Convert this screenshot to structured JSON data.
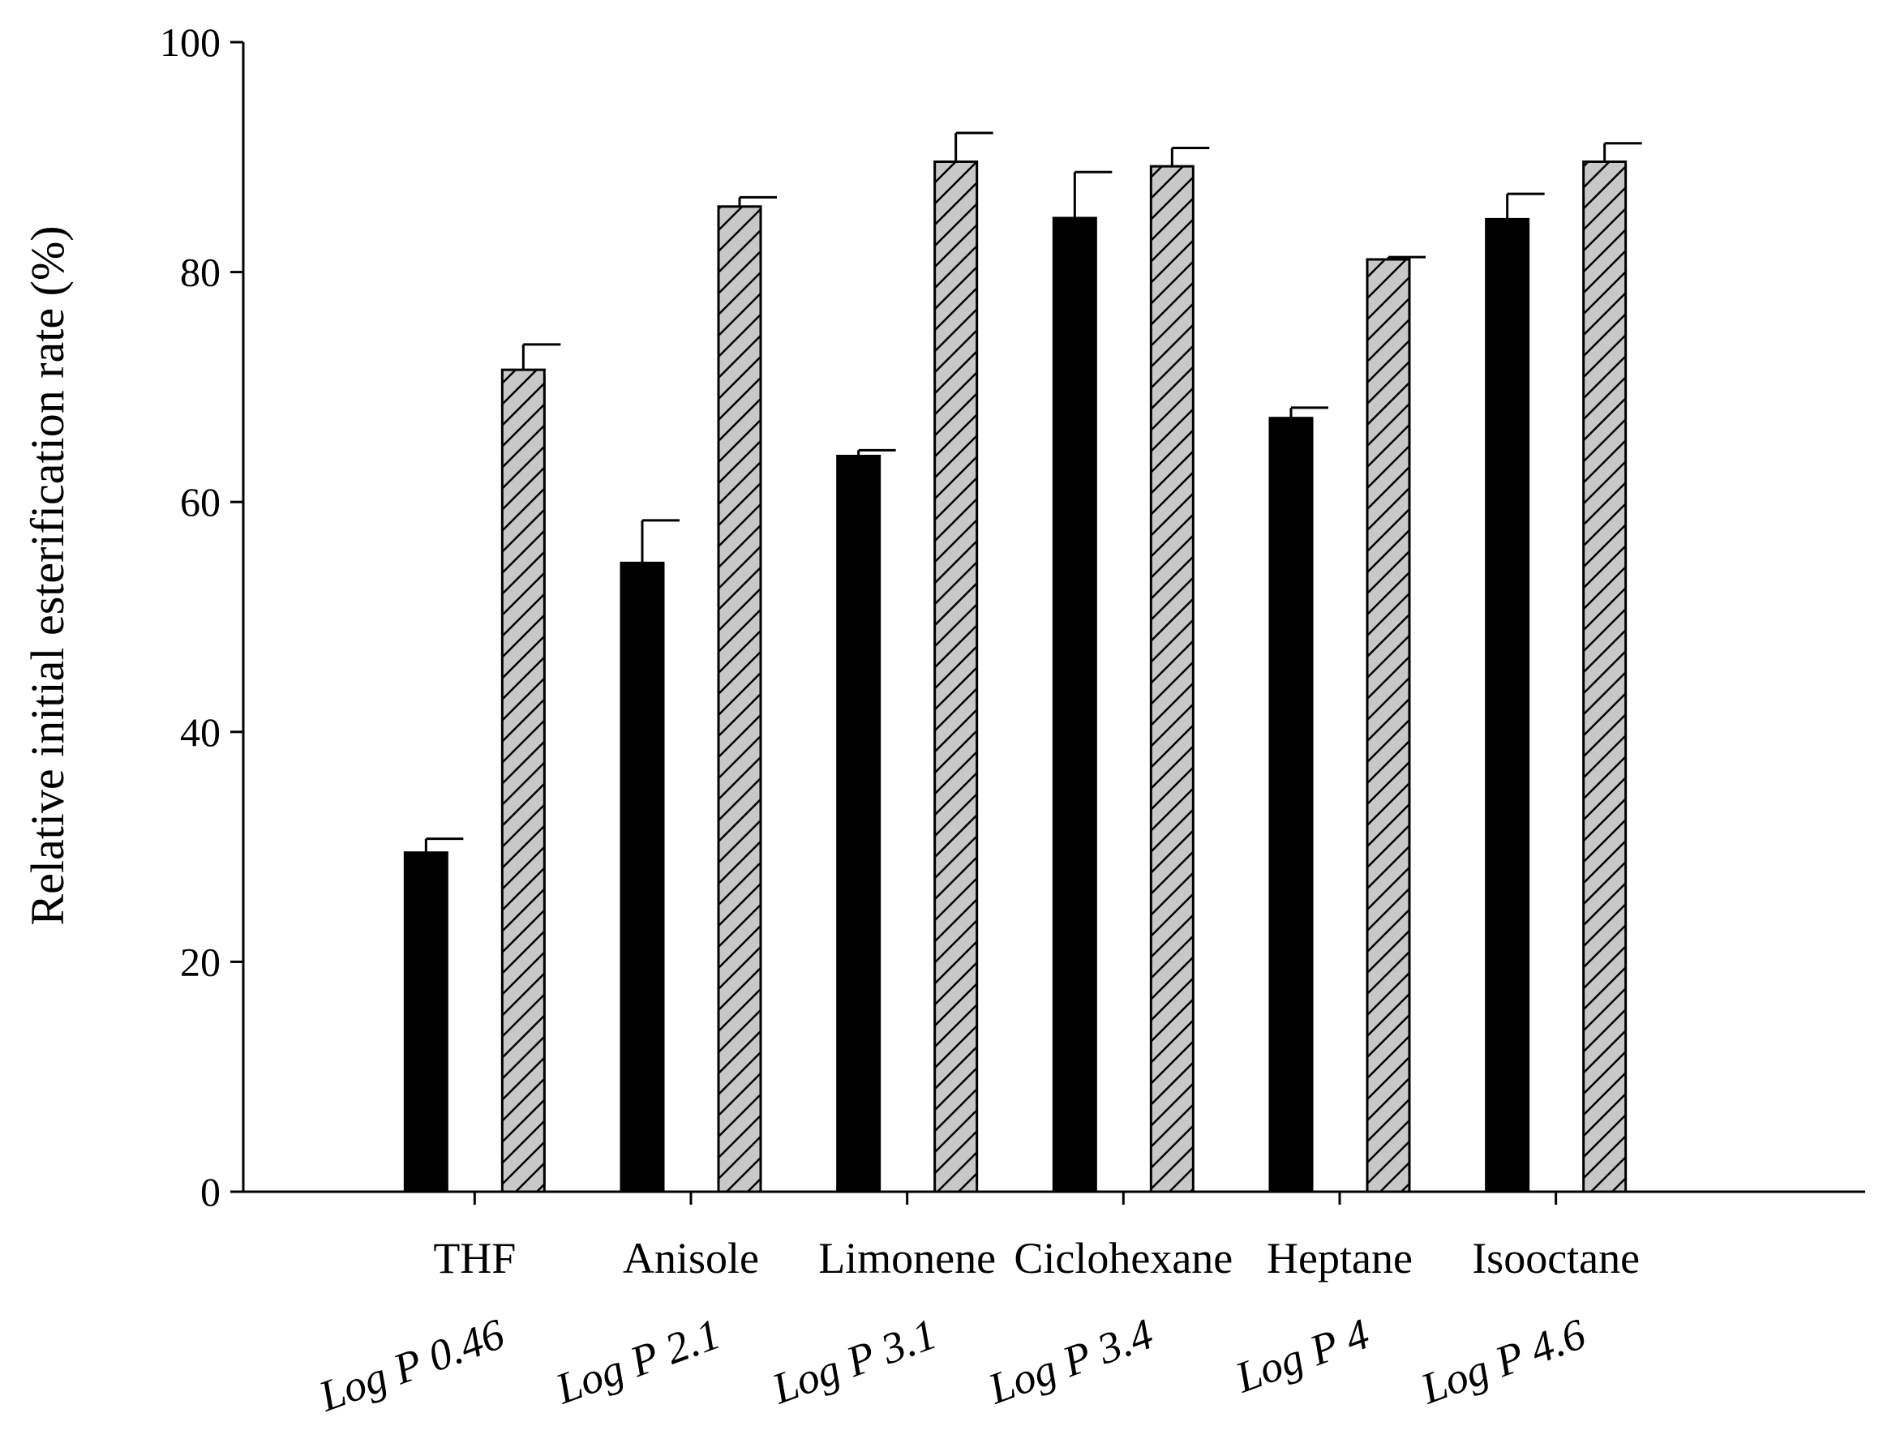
{
  "chart_data": {
    "type": "bar",
    "title": "",
    "xlabel": "",
    "ylabel": "Relative initial esterification rate (%)",
    "ylim": [
      0,
      100
    ],
    "yticks": [
      0,
      20,
      40,
      60,
      80,
      100
    ],
    "grid": false,
    "categories": [
      "THF",
      "Anisole",
      "Limonene",
      "Ciclohexane",
      "Heptane",
      "Isooctane"
    ],
    "log_p_labels": [
      "Log P 0.46",
      "Log P 2.1",
      "Log P 3.1",
      "Log P 3.4",
      "Log P 4",
      "Log P 4.6"
    ],
    "series": [
      {
        "color": "#000000",
        "pattern": "solid",
        "values": [
          29.5,
          54.7,
          64.0,
          84.7,
          67.3,
          84.6
        ],
        "errors": [
          1.2,
          3.7,
          0.5,
          4.0,
          0.9,
          2.2
        ]
      },
      {
        "color": "#c8c8c8",
        "pattern": "diagonal-hatch",
        "values": [
          71.5,
          85.7,
          89.6,
          89.2,
          81.1,
          89.6
        ],
        "errors": [
          2.2,
          0.8,
          2.5,
          1.6,
          0.2,
          1.6
        ]
      }
    ]
  }
}
